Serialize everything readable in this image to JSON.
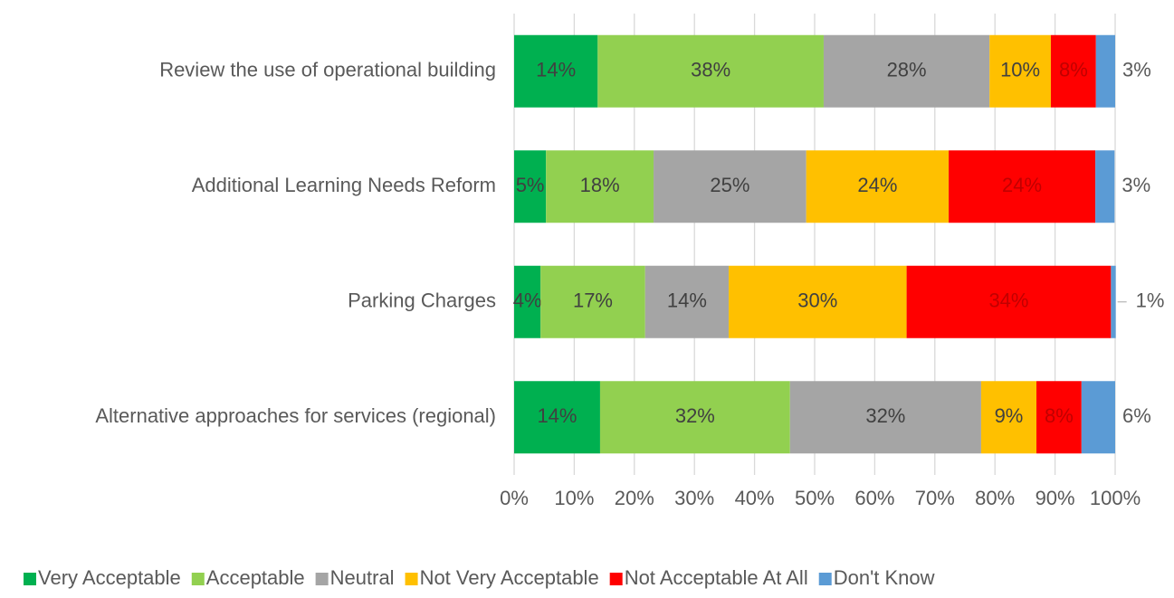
{
  "chart_data": {
    "type": "stacked_bar_horizontal",
    "categories": [
      "Review the use of operational building",
      "Additional Learning Needs Reform",
      "Parking Charges",
      "Alternative approaches for services (regional)"
    ],
    "series": [
      {
        "name": "Very Acceptable",
        "color": "#00b050",
        "values": [
          13.9,
          5.3,
          4.4,
          14.3
        ],
        "value_labels": [
          "14%",
          "5%",
          "4%",
          "14%"
        ]
      },
      {
        "name": "Acceptable",
        "color": "#92d050",
        "values": [
          37.6,
          17.9,
          17.4,
          31.6
        ],
        "value_labels": [
          "38%",
          "18%",
          "17%",
          "32%"
        ]
      },
      {
        "name": "Neutral",
        "color": "#a5a5a5",
        "values": [
          27.6,
          25.4,
          13.9,
          31.8
        ],
        "value_labels": [
          "28%",
          "25%",
          "14%",
          "32%"
        ]
      },
      {
        "name": "Not Very Acceptable",
        "color": "#ffc000",
        "values": [
          10.2,
          23.7,
          29.6,
          9.2
        ],
        "value_labels": [
          "10%",
          "24%",
          "30%",
          "9%"
        ]
      },
      {
        "name": "Not Acceptable At All",
        "color": "#ff0000",
        "values": [
          7.5,
          24.4,
          34.0,
          7.5
        ],
        "value_labels": [
          "8%",
          "24%",
          "34%",
          "8%"
        ]
      },
      {
        "name": "Don't Know",
        "color": "#5b9bd5",
        "values": [
          3.2,
          3.2,
          0.8,
          5.6
        ],
        "value_labels": [
          "3%",
          "3%",
          "1%",
          "6%"
        ]
      }
    ],
    "xlim": [
      0,
      100
    ],
    "xticks": [
      {
        "value": 0,
        "label": "0%"
      },
      {
        "value": 10,
        "label": "10%"
      },
      {
        "value": 20,
        "label": "20%"
      },
      {
        "value": 30,
        "label": "30%"
      },
      {
        "value": 40,
        "label": "40%"
      },
      {
        "value": 50,
        "label": "50%"
      },
      {
        "value": 60,
        "label": "60%"
      },
      {
        "value": 70,
        "label": "70%"
      },
      {
        "value": 80,
        "label": "80%"
      },
      {
        "value": 90,
        "label": "90%"
      },
      {
        "value": 100,
        "label": "100%"
      }
    ],
    "grid": true,
    "legend": "bottom"
  }
}
